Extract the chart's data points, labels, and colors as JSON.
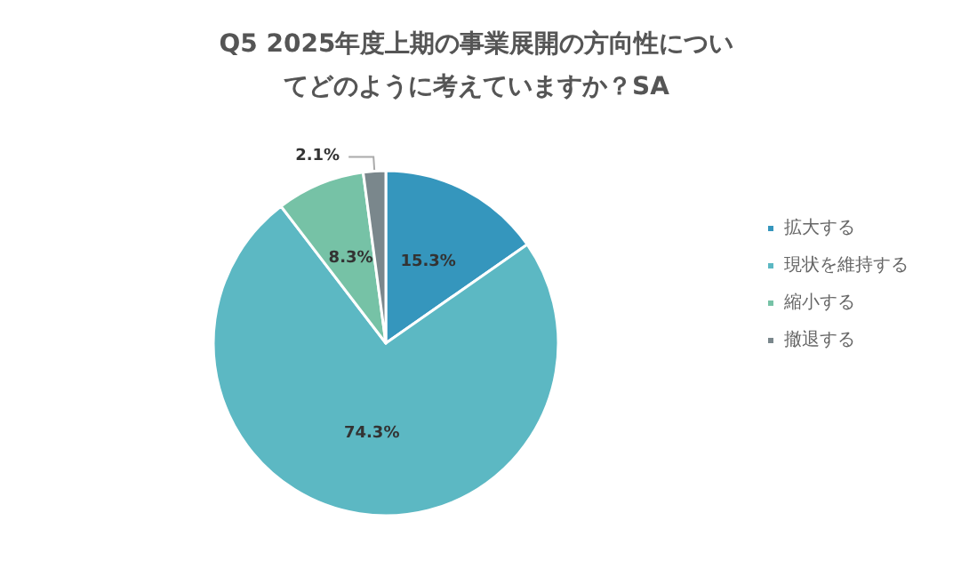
{
  "chart_data": {
    "type": "pie",
    "title": "Q5 2025年度上期の事業展開の方向性についてどのように考えていますか？SA",
    "categories": [
      "拡大する",
      "現状を維持する",
      "縮小する",
      "撤退する"
    ],
    "values": [
      15.3,
      74.3,
      8.3,
      2.1
    ],
    "colors": [
      "#3596bd",
      "#5cb8c3",
      "#76c2a6",
      "#7a878c"
    ],
    "value_labels": [
      "15.3%",
      "74.3%",
      "8.3%",
      "2.1%"
    ],
    "legend": "right"
  }
}
